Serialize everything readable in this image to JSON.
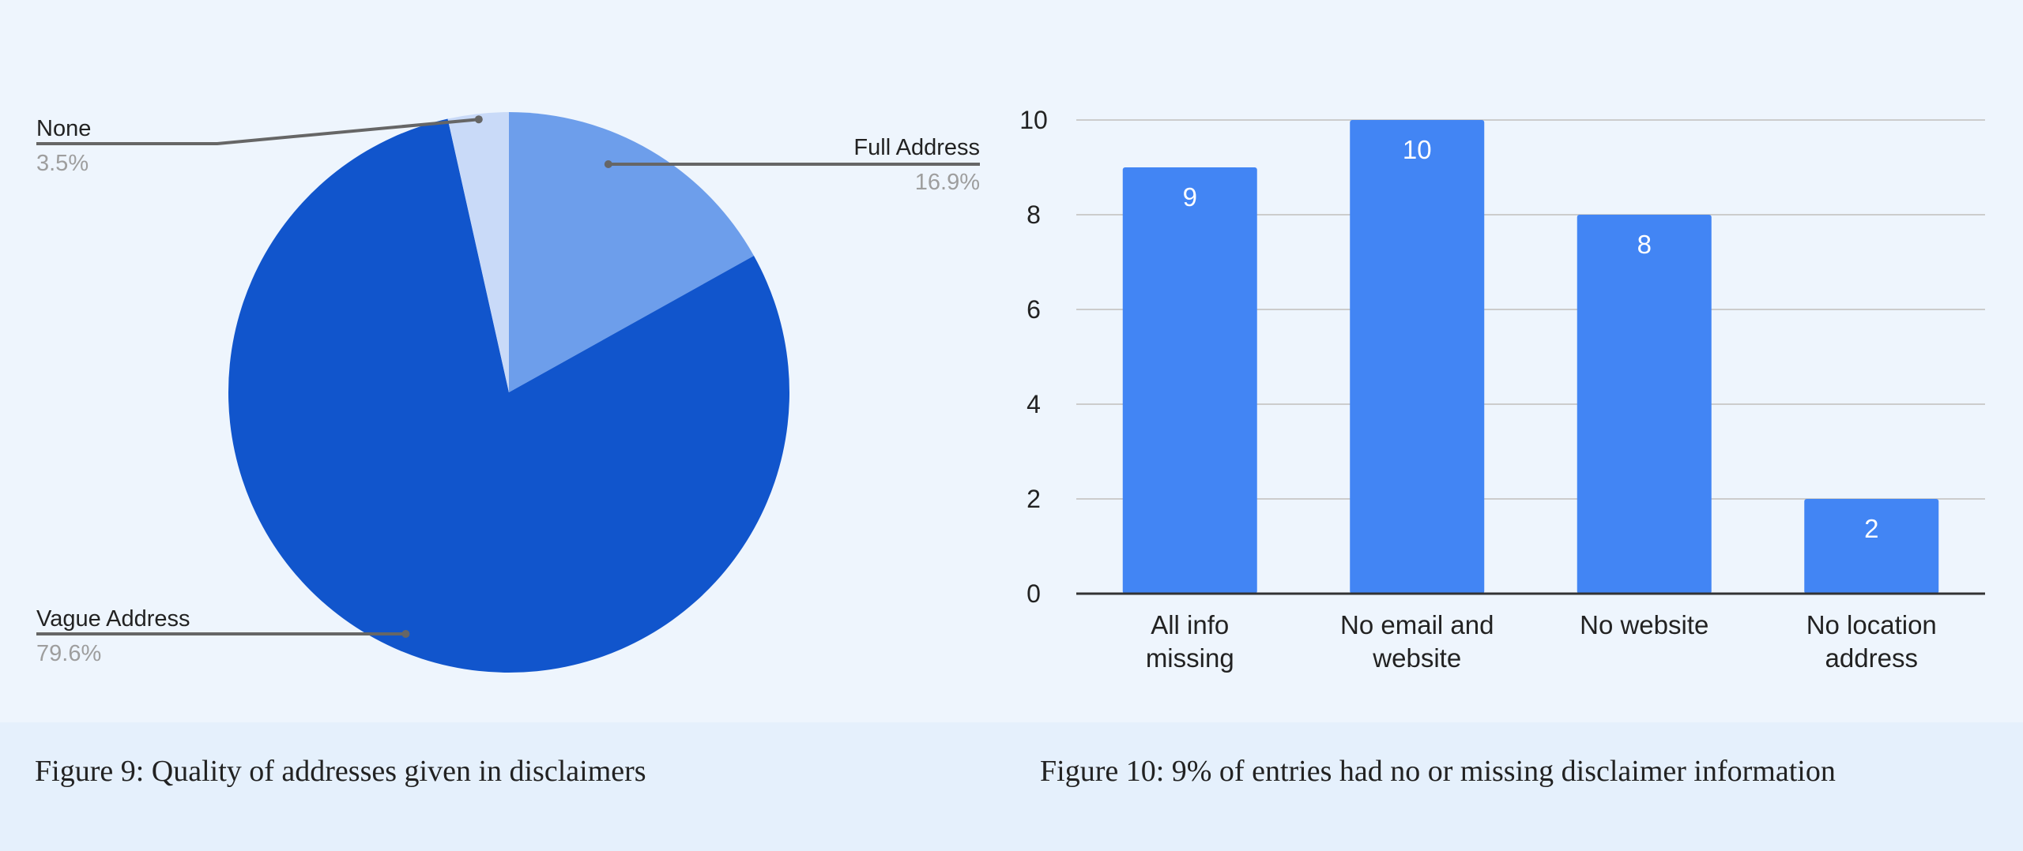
{
  "colors": {
    "background": "#eef5fd",
    "caption_band": "#e5f0fc",
    "bar": "#4285f4",
    "pie_vague": "#1155cc",
    "pie_full": "#6d9eeb",
    "pie_none": "#c9daf8",
    "gridline": "#cccccc",
    "leader": "#666666"
  },
  "captions": {
    "left": "Figure 9: Quality of addresses given in disclaimers",
    "right": "Figure 10: 9% of entries had no or missing disclaimer information"
  },
  "chart_data": [
    {
      "type": "pie",
      "title": "",
      "slices": [
        {
          "label": "Full Address",
          "value": 16.9,
          "display": "16.9%"
        },
        {
          "label": "Vague Address",
          "value": 79.6,
          "display": "79.6%"
        },
        {
          "label": "None",
          "value": 3.5,
          "display": "3.5%"
        }
      ],
      "start_angle": "12 o'clock",
      "direction": "clockwise",
      "labels": "outside with leader lines"
    },
    {
      "type": "bar",
      "title": "",
      "xlabel": "",
      "ylabel": "",
      "categories": [
        [
          "All info",
          "missing"
        ],
        [
          "No email and",
          "website"
        ],
        [
          "No website"
        ],
        [
          "No location",
          "address"
        ]
      ],
      "values": [
        9,
        10,
        8,
        2
      ],
      "data_labels": [
        "9",
        "10",
        "8",
        "2"
      ],
      "ylim": [
        0,
        10
      ],
      "yticks": [
        0,
        2,
        4,
        6,
        8,
        10
      ],
      "grid": true,
      "legend": "none"
    }
  ]
}
